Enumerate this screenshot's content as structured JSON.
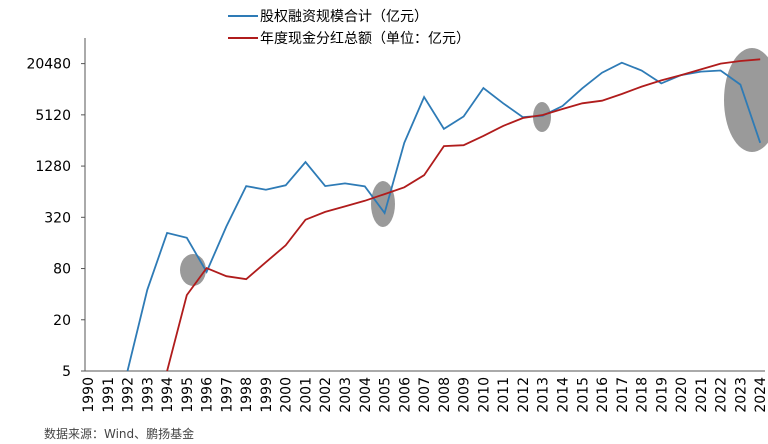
{
  "chart_data": {
    "type": "line",
    "log_scale": true,
    "source": "数据来源：Wind、鹏扬基金",
    "categories": [
      "1990",
      "1991",
      "1992",
      "1993",
      "1994",
      "1995",
      "1996",
      "1997",
      "1998",
      "1999",
      "2000",
      "2001",
      "2002",
      "2003",
      "2004",
      "2005",
      "2006",
      "2007",
      "2008",
      "2009",
      "2010",
      "2011",
      "2012",
      "2013",
      "2014",
      "2015",
      "2016",
      "2017",
      "2018",
      "2019",
      "2020",
      "2021",
      "2022",
      "2023",
      "2024"
    ],
    "series": [
      {
        "name": "股权融资规模合计（亿元）",
        "color": "#2e7bb6",
        "values": [
          null,
          null,
          5,
          45,
          210,
          184,
          73,
          250,
          745,
          675,
          760,
          1430,
          745,
          800,
          740,
          360,
          2400,
          8300,
          3500,
          4900,
          10600,
          7000,
          4800,
          5000,
          6500,
          10500,
          16000,
          21000,
          17000,
          12000,
          15000,
          16500,
          17000,
          11600,
          2400
        ]
      },
      {
        "name": "年度现金分红总额（单位：亿元）",
        "color": "#b01c1c",
        "values": [
          null,
          null,
          null,
          null,
          5,
          39,
          81,
          65,
          60,
          95,
          150,
          300,
          370,
          430,
          500,
          600,
          720,
          1000,
          2200,
          2250,
          2900,
          3800,
          4700,
          5100,
          6000,
          7000,
          7500,
          9000,
          11000,
          13000,
          15000,
          17500,
          20500,
          22000,
          23000
        ]
      }
    ],
    "ylim": [
      5,
      40960
    ],
    "yticks": [
      5,
      20,
      80,
      320,
      1280,
      5120,
      20480
    ]
  }
}
